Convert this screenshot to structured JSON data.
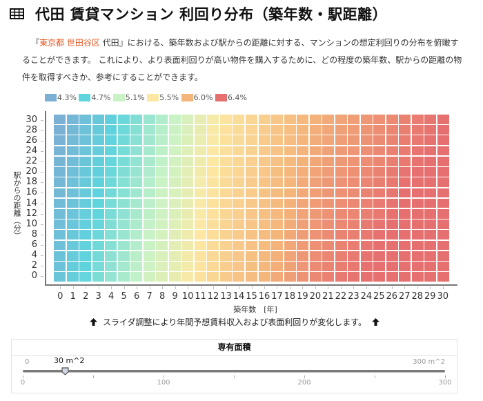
{
  "header": {
    "icon": "table-icon",
    "title": "代田 賃貸マンション 利回り分布（築年数・駅距離）"
  },
  "description": {
    "prefix": "『",
    "location": "東京都 世田谷区",
    "rest": " 代田』における、築年数および駅からの距離に対する、マンションの想定利回りの分布を俯瞰することができます。 これにより、より表面利回りが高い物件を購入するために、どの程度の築年数、駅からの距離の物件を取得すべきか、参考にすることができます。",
    "highlight_color": "#e8531c"
  },
  "chart_data": {
    "type": "heatmap",
    "title": "",
    "xlabel": "築年数　[年]",
    "ylabel": "駅からの距離（分）",
    "x": [
      0,
      1,
      2,
      3,
      4,
      5,
      6,
      7,
      8,
      9,
      10,
      11,
      12,
      13,
      14,
      15,
      16,
      17,
      18,
      19,
      20,
      21,
      22,
      23,
      24,
      25,
      26,
      27,
      28,
      29,
      30
    ],
    "y": [
      30,
      28,
      26,
      24,
      22,
      20,
      18,
      16,
      14,
      12,
      10,
      8,
      6,
      4,
      2,
      0
    ],
    "legend": [
      {
        "label": "4.3%",
        "value": 4.3,
        "color": "#7bafd4"
      },
      {
        "label": "4.7%",
        "value": 4.7,
        "color": "#5fd4dd"
      },
      {
        "label": "5.1%",
        "value": 5.1,
        "color": "#c9f3c6"
      },
      {
        "label": "5.5%",
        "value": 5.5,
        "color": "#fde8a3"
      },
      {
        "label": "6.0%",
        "value": 6.0,
        "color": "#f4b57a"
      },
      {
        "label": "6.4%",
        "value": 6.4,
        "color": "#e66f6f"
      }
    ],
    "values": [
      [
        4.3,
        4.39,
        4.48,
        4.57,
        4.66,
        4.74,
        4.83,
        4.92,
        5.01,
        5.1,
        5.21,
        5.33,
        5.44,
        5.54,
        5.61,
        5.68,
        5.75,
        5.82,
        5.89,
        5.96,
        6.02,
        6.06,
        6.1,
        6.13,
        6.17,
        6.21,
        6.25,
        6.29,
        6.32,
        6.36,
        6.4
      ],
      [
        4.32,
        4.41,
        4.5,
        4.59,
        4.68,
        4.76,
        4.85,
        4.94,
        5.03,
        5.12,
        5.23,
        5.35,
        5.46,
        5.56,
        5.63,
        5.7,
        5.77,
        5.84,
        5.91,
        5.98,
        6.04,
        6.08,
        6.12,
        6.15,
        6.19,
        6.23,
        6.27,
        6.31,
        6.34,
        6.38,
        6.42
      ],
      [
        4.33,
        4.42,
        4.51,
        4.6,
        4.69,
        4.77,
        4.86,
        4.95,
        5.04,
        5.13,
        5.24,
        5.36,
        5.47,
        5.57,
        5.64,
        5.71,
        5.78,
        5.85,
        5.92,
        5.99,
        6.05,
        6.09,
        6.13,
        6.16,
        6.2,
        6.24,
        6.28,
        6.32,
        6.35,
        6.39,
        6.43
      ],
      [
        4.35,
        4.44,
        4.53,
        4.62,
        4.71,
        4.79,
        4.88,
        4.97,
        5.06,
        5.15,
        5.26,
        5.38,
        5.49,
        5.59,
        5.66,
        5.73,
        5.8,
        5.87,
        5.94,
        6.01,
        6.07,
        6.11,
        6.15,
        6.18,
        6.22,
        6.26,
        6.3,
        6.34,
        6.37,
        6.41,
        6.45
      ],
      [
        4.36,
        4.45,
        4.54,
        4.63,
        4.72,
        4.8,
        4.89,
        4.98,
        5.07,
        5.16,
        5.27,
        5.39,
        5.5,
        5.6,
        5.67,
        5.74,
        5.81,
        5.88,
        5.95,
        6.02,
        6.08,
        6.12,
        6.16,
        6.19,
        6.23,
        6.27,
        6.31,
        6.35,
        6.38,
        6.42,
        6.46
      ],
      [
        4.38,
        4.47,
        4.56,
        4.65,
        4.74,
        4.82,
        4.91,
        5.0,
        5.09,
        5.18,
        5.29,
        5.41,
        5.52,
        5.62,
        5.69,
        5.76,
        5.83,
        5.9,
        5.97,
        6.04,
        6.1,
        6.14,
        6.18,
        6.21,
        6.25,
        6.29,
        6.33,
        6.37,
        6.4,
        6.44,
        6.48
      ],
      [
        4.4,
        4.49,
        4.58,
        4.67,
        4.76,
        4.84,
        4.93,
        5.02,
        5.11,
        5.2,
        5.31,
        5.43,
        5.54,
        5.64,
        5.71,
        5.78,
        5.85,
        5.92,
        5.99,
        6.06,
        6.12,
        6.16,
        6.2,
        6.23,
        6.27,
        6.31,
        6.35,
        6.39,
        6.42,
        6.46,
        6.5
      ],
      [
        4.41,
        4.5,
        4.59,
        4.68,
        4.77,
        4.85,
        4.94,
        5.03,
        5.12,
        5.21,
        5.32,
        5.44,
        5.55,
        5.65,
        5.72,
        5.79,
        5.86,
        5.93,
        6.0,
        6.07,
        6.13,
        6.17,
        6.21,
        6.24,
        6.28,
        6.32,
        6.36,
        6.4,
        6.43,
        6.47,
        6.51
      ],
      [
        4.43,
        4.52,
        4.61,
        4.7,
        4.79,
        4.87,
        4.96,
        5.05,
        5.14,
        5.23,
        5.34,
        5.46,
        5.57,
        5.67,
        5.74,
        5.81,
        5.88,
        5.95,
        6.02,
        6.09,
        6.15,
        6.19,
        6.23,
        6.26,
        6.3,
        6.34,
        6.38,
        6.42,
        6.45,
        6.49,
        6.53
      ],
      [
        4.44,
        4.53,
        4.62,
        4.71,
        4.8,
        4.88,
        4.97,
        5.06,
        5.15,
        5.24,
        5.35,
        5.47,
        5.58,
        5.68,
        5.75,
        5.82,
        5.89,
        5.96,
        6.03,
        6.1,
        6.16,
        6.2,
        6.24,
        6.27,
        6.31,
        6.35,
        6.39,
        6.43,
        6.46,
        6.5,
        6.54
      ],
      [
        4.46,
        4.55,
        4.64,
        4.73,
        4.82,
        4.9,
        4.99,
        5.08,
        5.17,
        5.26,
        5.37,
        5.49,
        5.6,
        5.7,
        5.77,
        5.84,
        5.91,
        5.98,
        6.05,
        6.12,
        6.18,
        6.22,
        6.26,
        6.29,
        6.33,
        6.37,
        6.41,
        6.45,
        6.48,
        6.52,
        6.56
      ],
      [
        4.48,
        4.57,
        4.66,
        4.75,
        4.84,
        4.92,
        5.01,
        5.1,
        5.19,
        5.28,
        5.39,
        5.51,
        5.62,
        5.72,
        5.79,
        5.86,
        5.93,
        6.0,
        6.07,
        6.14,
        6.2,
        6.24,
        6.28,
        6.31,
        6.35,
        6.39,
        6.43,
        6.47,
        6.5,
        6.54,
        6.58
      ],
      [
        4.49,
        4.58,
        4.67,
        4.76,
        4.85,
        4.93,
        5.02,
        5.11,
        5.2,
        5.29,
        5.4,
        5.52,
        5.63,
        5.73,
        5.8,
        5.87,
        5.94,
        6.01,
        6.08,
        6.15,
        6.21,
        6.25,
        6.29,
        6.32,
        6.36,
        6.4,
        6.44,
        6.48,
        6.51,
        6.55,
        6.59
      ],
      [
        4.51,
        4.6,
        4.69,
        4.78,
        4.87,
        4.95,
        5.04,
        5.13,
        5.22,
        5.31,
        5.42,
        5.54,
        5.65,
        5.75,
        5.82,
        5.89,
        5.96,
        6.03,
        6.1,
        6.17,
        6.23,
        6.27,
        6.31,
        6.34,
        6.38,
        6.42,
        6.46,
        6.5,
        6.53,
        6.57,
        6.61
      ],
      [
        4.52,
        4.61,
        4.7,
        4.79,
        4.88,
        4.96,
        5.05,
        5.14,
        5.23,
        5.32,
        5.43,
        5.55,
        5.66,
        5.76,
        5.83,
        5.9,
        5.97,
        6.04,
        6.11,
        6.18,
        6.24,
        6.28,
        6.32,
        6.35,
        6.39,
        6.43,
        6.47,
        6.51,
        6.54,
        6.58,
        6.62
      ],
      [
        4.54,
        4.63,
        4.72,
        4.81,
        4.9,
        4.98,
        5.07,
        5.16,
        5.25,
        5.34,
        5.45,
        5.57,
        5.68,
        5.78,
        5.85,
        5.92,
        5.99,
        6.06,
        6.13,
        6.2,
        6.26,
        6.3,
        6.34,
        6.37,
        6.41,
        6.45,
        6.49,
        6.53,
        6.56,
        6.6,
        6.64
      ]
    ],
    "grid": false,
    "legend_position": "top-left"
  },
  "note": {
    "icon": "arrow-up-icon",
    "text": "スライダ調整により年間予想賃料収入および表面利回りが変化します。"
  },
  "slider": {
    "title": "専有面積",
    "min_label": "0",
    "max_label": "300 m^2",
    "value_label": "30 m^2",
    "value": 30,
    "min": 0,
    "max": 300,
    "ticks": [
      {
        "value": 0,
        "label": "0"
      },
      {
        "value": 50,
        "label": ""
      },
      {
        "value": 100,
        "label": "100"
      },
      {
        "value": 150,
        "label": ""
      },
      {
        "value": 200,
        "label": "200"
      },
      {
        "value": 250,
        "label": ""
      },
      {
        "value": 300,
        "label": "300"
      }
    ]
  }
}
